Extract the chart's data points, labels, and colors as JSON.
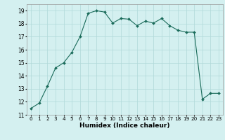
{
  "x": [
    0,
    1,
    2,
    3,
    4,
    5,
    6,
    7,
    8,
    9,
    10,
    11,
    12,
    13,
    14,
    15,
    16,
    17,
    18,
    19,
    20,
    21,
    22,
    23
  ],
  "y": [
    11.5,
    11.9,
    13.2,
    14.6,
    15.0,
    15.8,
    17.0,
    18.8,
    19.0,
    18.9,
    18.05,
    18.4,
    18.35,
    17.85,
    18.2,
    18.05,
    18.4,
    17.85,
    17.5,
    17.35,
    17.35,
    12.2,
    12.65,
    12.65
  ],
  "line_color": "#1a6b5a",
  "marker": "D",
  "marker_size": 2,
  "bg_color": "#d4f0f0",
  "grid_color": "#b0d8d8",
  "xlabel": "Humidex (Indice chaleur)",
  "xlim": [
    -0.5,
    23.5
  ],
  "ylim": [
    11,
    19.5
  ],
  "yticks": [
    11,
    12,
    13,
    14,
    15,
    16,
    17,
    18,
    19
  ],
  "xticks": [
    0,
    1,
    2,
    3,
    4,
    5,
    6,
    7,
    8,
    9,
    10,
    11,
    12,
    13,
    14,
    15,
    16,
    17,
    18,
    19,
    20,
    21,
    22,
    23
  ]
}
